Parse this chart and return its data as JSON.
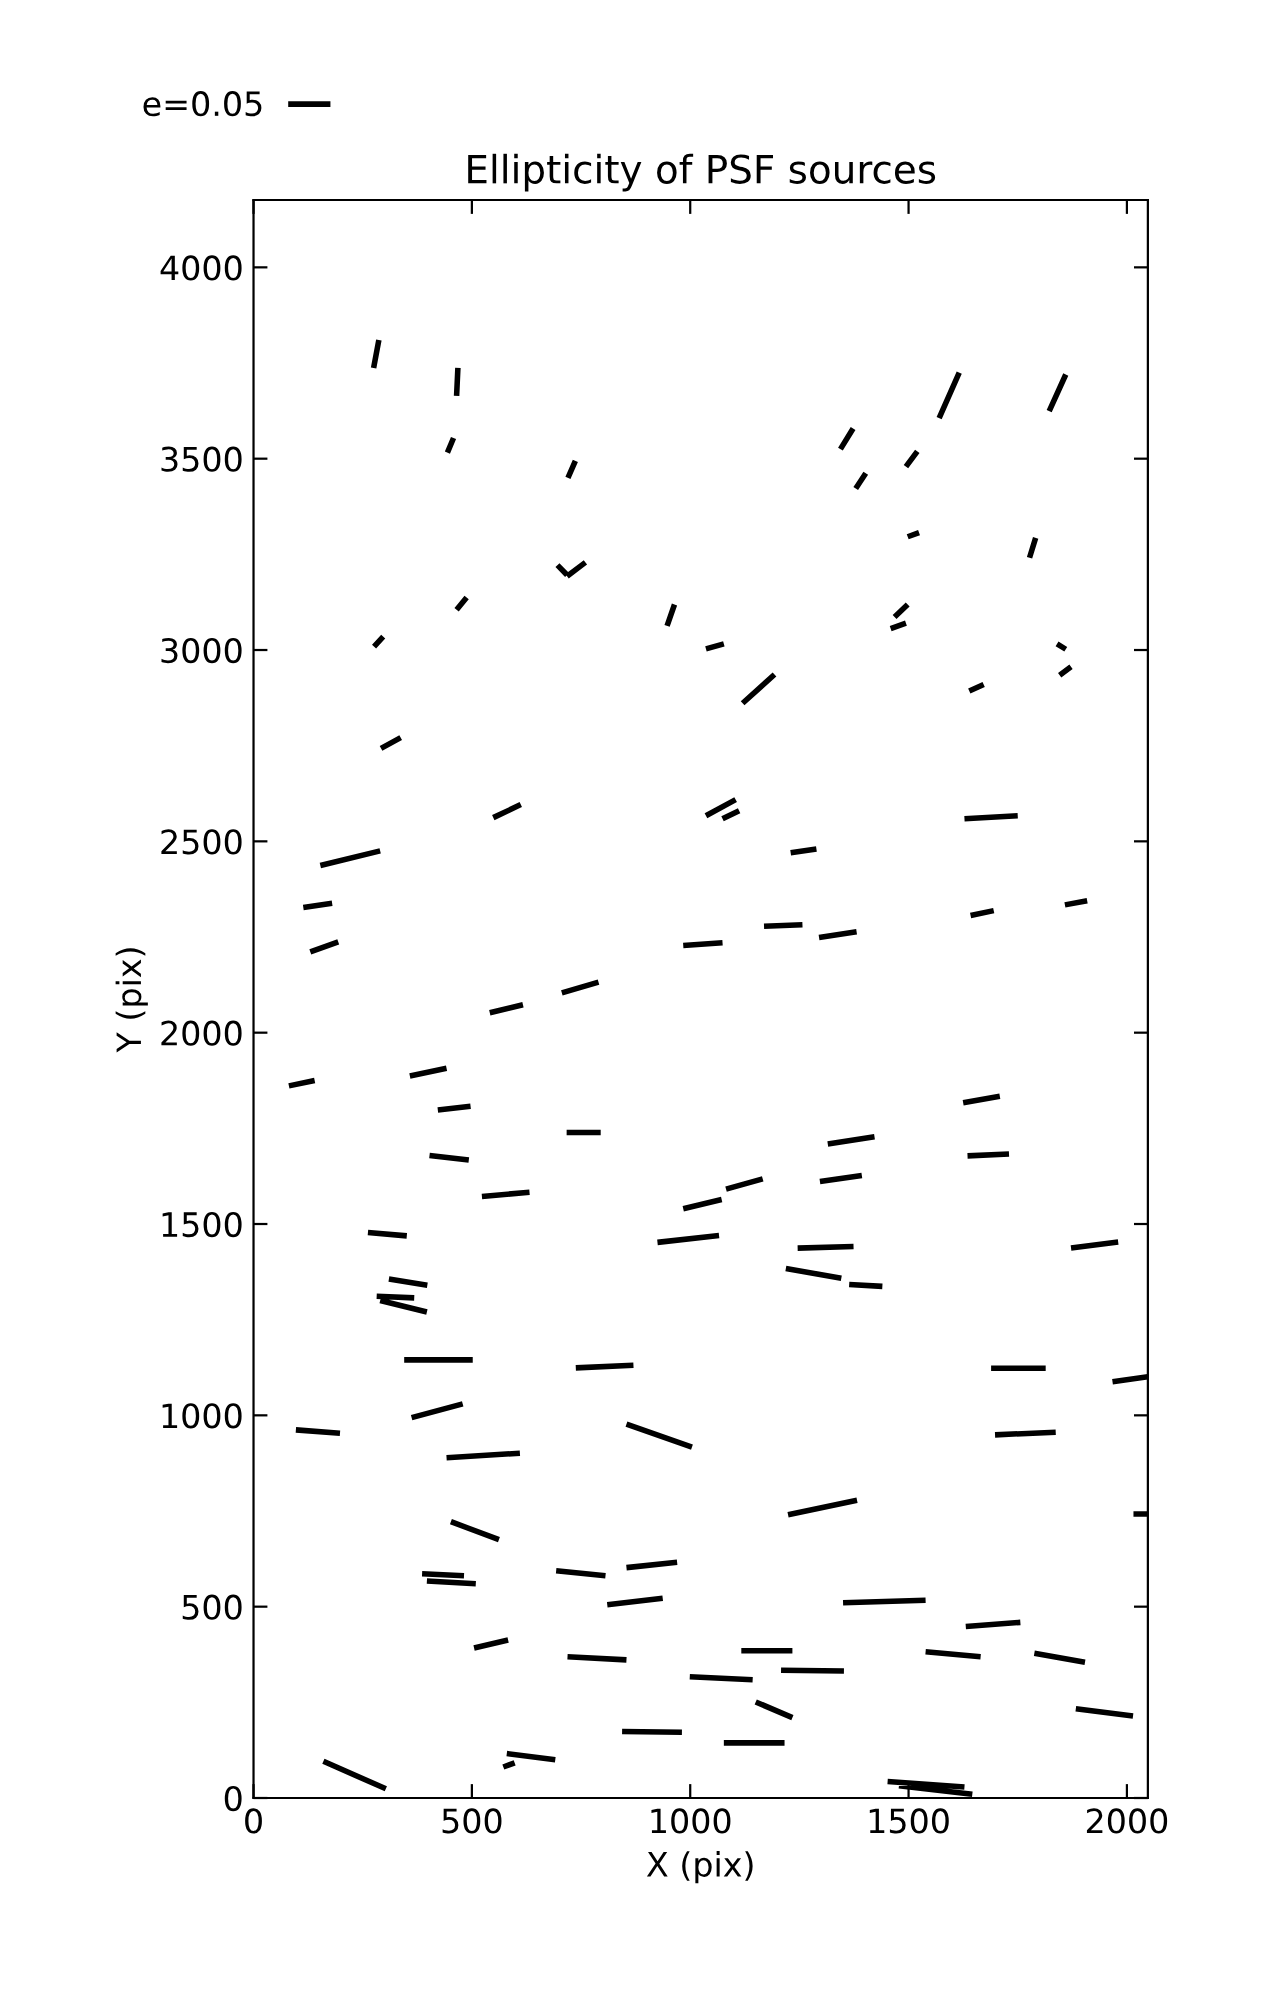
{
  "chart_data": {
    "type": "line",
    "title": "Ellipticity of PSF sources",
    "xlabel": "X (pix)",
    "ylabel": "Y (pix)",
    "xlim": [
      0,
      2048
    ],
    "ylim": [
      0,
      4176
    ],
    "xticks": [
      0,
      500,
      1000,
      1500,
      2000
    ],
    "yticks": [
      0,
      500,
      1000,
      1500,
      2000,
      2500,
      3000,
      3500,
      4000
    ],
    "grid": false,
    "legend": "top left",
    "marker": "none",
    "line_style": "solid",
    "series": [
      {
        "name": "e=0.05",
        "color": "#000000",
        "x": [
          287,
          275,
          null,
          468,
          465,
          null,
          458,
          444,
          null,
          737,
          720,
          null,
          696,
          718,
          null,
          718,
          760,
          null,
          488,
          465,
          null,
          964,
          947,
          null,
          297,
          276,
          null,
          337,
          292,
          null,
          612,
          549,
          null,
          1616,
          1570,
          null,
          1860,
          1822,
          null,
          1373,
          1344,
          null,
          1520,
          1494,
          null,
          1402,
          1379,
          null,
          1524,
          1498,
          null,
          1791,
          1777,
          null,
          1498,
          1468,
          null,
          1494,
          1459,
          null,
          1840,
          1860,
          null,
          1872,
          1846,
          null,
          1672,
          1639,
          null,
          1193,
          1120,
          null,
          1036,
          1077,
          null,
          1036,
          1104,
          null,
          1074,
          1112,
          null,
          1628,
          1750,
          null,
          153,
          290,
          null,
          114,
          180,
          null,
          130,
          194,
          null,
          541,
          617,
          null,
          706,
          790,
          null,
          984,
          1074,
          null,
          81,
          140,
          null,
          358,
          442,
          null,
          422,
          497,
          null,
          717,
          795,
          null,
          403,
          493,
          null,
          523,
          632,
          null,
          984,
          1072,
          null,
          925,
          1066,
          null,
          262,
          351,
          null,
          310,
          398,
          null,
          282,
          368,
          null,
          290,
          397,
          null,
          1230,
          1289,
          null,
          1642,
          1695,
          null,
          1858,
          1909,
          null,
          1169,
          1257,
          null,
          1295,
          1381,
          null,
          1625,
          1709,
          null,
          1635,
          1730,
          null,
          1315,
          1422,
          null,
          1297,
          1393,
          null,
          1082,
          1166,
          null,
          1246,
          1374,
          null,
          1219,
          1346,
          null,
          1364,
          1440,
          null,
          1872,
          1980,
          null,
          345,
          502,
          null,
          738,
          870,
          null,
          362,
          479,
          null,
          97,
          198,
          null,
          854,
          1004,
          null,
          442,
          610,
          null,
          452,
          562,
          null,
          386,
          482,
          null,
          397,
          509,
          null,
          693,
          806,
          null,
          854,
          970,
          null,
          810,
          937,
          null,
          505,
          583,
          null,
          719,
          854,
          null,
          999,
          1143,
          null,
          844,
          981,
          null,
          160,
          303,
          null,
          580,
          691,
          null,
          572,
          598,
          null,
          1689,
          1814,
          null,
          1967,
          2048,
          null,
          1698,
          1837,
          null,
          2015,
          2048,
          null,
          1224,
          1382,
          null,
          1350,
          1539,
          null,
          1631,
          1756,
          null,
          1117,
          1234,
          null,
          1539,
          1665,
          null,
          1788,
          1904,
          null,
          1208,
          1352,
          null,
          1150,
          1234,
          null,
          1883,
          2014,
          null,
          1077,
          1216,
          null,
          1452,
          1628,
          null,
          1478,
          1646
        ],
        "values": [
          3810,
          3737,
          null,
          3737,
          3664,
          null,
          3554,
          3516,
          null,
          3494,
          3450,
          null,
          3222,
          3196,
          null,
          3193,
          3229,
          null,
          3137,
          3105,
          null,
          3119,
          3063,
          null,
          3035,
          3009,
          null,
          2771,
          2743,
          null,
          2596,
          2562,
          null,
          3725,
          3606,
          null,
          3720,
          3624,
          null,
          3579,
          3525,
          null,
          3519,
          3479,
          null,
          3462,
          3422,
          null,
          3307,
          3296,
          null,
          3293,
          3241,
          null,
          3119,
          3086,
          null,
          3070,
          3056,
          null,
          3016,
          3002,
          null,
          2956,
          2934,
          null,
          2910,
          2893,
          null,
          2936,
          2861,
          null,
          3003,
          3016,
          null,
          2567,
          2609,
          null,
          2559,
          2580,
          null,
          2559,
          2567,
          null,
          2437,
          2475,
          null,
          2327,
          2338,
          null,
          2211,
          2237,
          null,
          2052,
          2073,
          null,
          2104,
          2132,
          null,
          2228,
          2235,
          null,
          1861,
          1875,
          null,
          1887,
          1907,
          null,
          1798,
          1808,
          null,
          1739,
          1739,
          null,
          1679,
          1667,
          null,
          1572,
          1583,
          null,
          1540,
          1564,
          null,
          1452,
          1470,
          null,
          1478,
          1469,
          null,
          1356,
          1340,
          null,
          1311,
          1307,
          null,
          1300,
          1270,
          null,
          2470,
          2480,
          null,
          2306,
          2319,
          null,
          2334,
          2345,
          null,
          2278,
          2282,
          null,
          2249,
          2264,
          null,
          1817,
          1834,
          null,
          1678,
          1683,
          null,
          1709,
          1728,
          null,
          1611,
          1627,
          null,
          1591,
          1618,
          null,
          1437,
          1441,
          null,
          1384,
          1358,
          null,
          1342,
          1337,
          null,
          1437,
          1453,
          null,
          1145,
          1145,
          null,
          1124,
          1131,
          null,
          994,
          1030,
          null,
          962,
          953,
          null,
          977,
          917,
          null,
          889,
          901,
          null,
          722,
          675,
          null,
          586,
          581,
          null,
          567,
          560,
          null,
          594,
          581,
          null,
          602,
          616,
          null,
          505,
          522,
          null,
          392,
          413,
          null,
          369,
          361,
          null,
          317,
          309,
          null,
          174,
          172,
          null,
          96,
          24,
          null,
          116,
          100,
          null,
          81,
          92,
          null,
          1123,
          1123,
          null,
          1088,
          1101,
          null,
          949,
          956,
          null,
          742,
          742,
          null,
          740,
          778,
          null,
          510,
          517,
          null,
          448,
          459,
          null,
          385,
          385,
          null,
          382,
          369,
          null,
          378,
          355,
          null,
          334,
          332,
          null,
          251,
          210,
          null,
          233,
          214,
          null,
          144,
          144,
          null,
          43,
          29,
          null,
          32,
          10
        ]
      }
    ]
  }
}
